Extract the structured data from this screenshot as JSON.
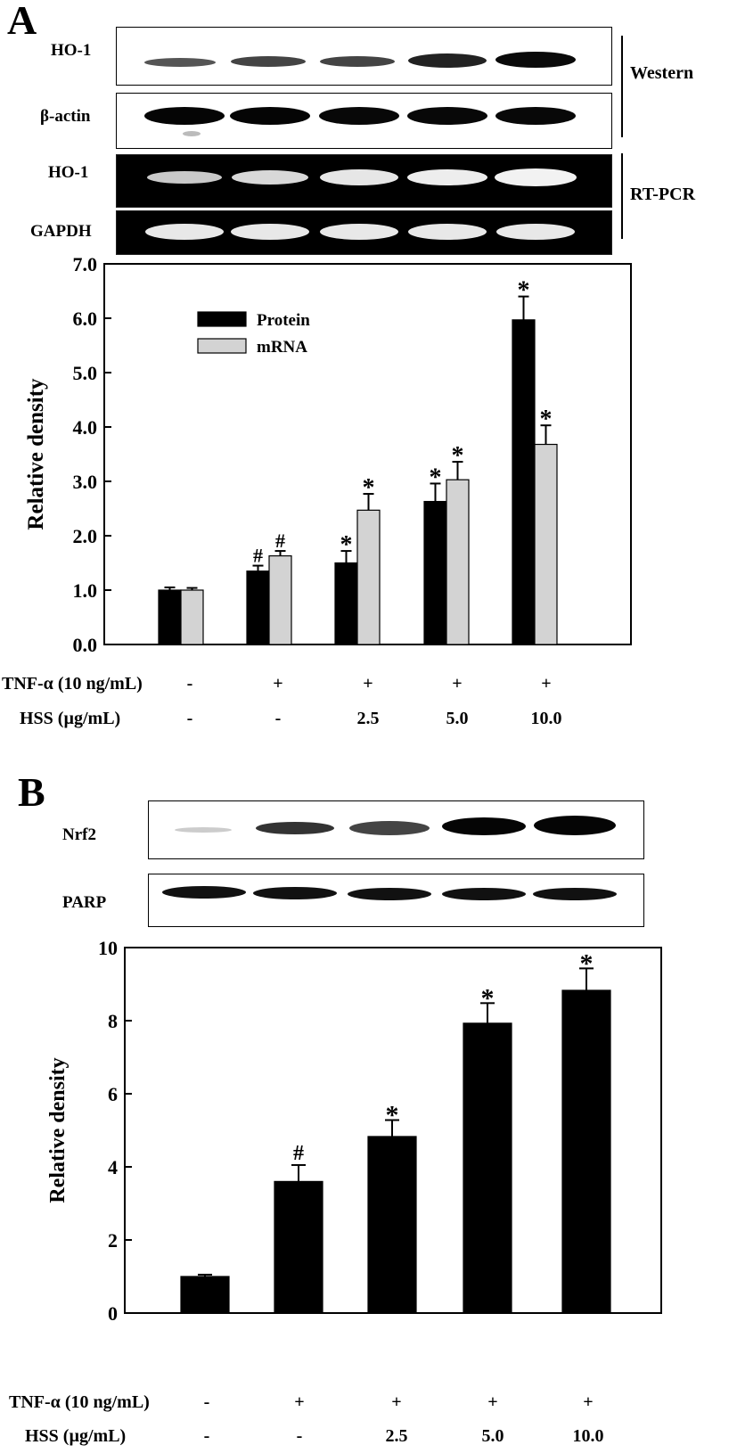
{
  "panel_a": {
    "letter": "A",
    "blots": {
      "rows": [
        "HO-1",
        "β-actin",
        "HO-1",
        "GAPDH"
      ],
      "methods": [
        "Western",
        "RT-PCR"
      ]
    },
    "conditions": [
      {
        "label": "TNF-α (10 ng/mL)",
        "values": [
          "-",
          "+",
          "+",
          "+",
          "+"
        ]
      },
      {
        "label": "HSS (µg/mL)",
        "values": [
          "-",
          "-",
          "2.5",
          "5.0",
          "10.0"
        ]
      }
    ]
  },
  "panel_b": {
    "letter": "B",
    "blots": {
      "rows": [
        "Nrf2",
        "PARP"
      ]
    },
    "conditions": [
      {
        "label": "TNF-α (10 ng/mL)",
        "values": [
          "-",
          "+",
          "+",
          "+",
          "+"
        ]
      },
      {
        "label": "HSS (µg/mL)",
        "values": [
          "-",
          "-",
          "2.5",
          "5.0",
          "10.0"
        ]
      }
    ]
  },
  "chart_data": [
    {
      "type": "bar",
      "ylabel": "Relative density",
      "ylim": [
        0,
        7
      ],
      "yticks": [
        "0.0",
        "1.0",
        "2.0",
        "3.0",
        "4.0",
        "5.0",
        "6.0",
        "7.0"
      ],
      "legend_position": "top-left",
      "series": [
        {
          "name": "Protein",
          "color": "#000000",
          "values": [
            1.0,
            1.35,
            1.5,
            2.63,
            5.97
          ],
          "errors": [
            0.05,
            0.1,
            0.22,
            0.33,
            0.43
          ],
          "marks": [
            "",
            "#",
            "*",
            "*",
            "*"
          ]
        },
        {
          "name": "mRNA",
          "color": "#d3d3d3",
          "values": [
            1.0,
            1.63,
            2.47,
            3.03,
            3.68
          ],
          "errors": [
            0.04,
            0.09,
            0.3,
            0.33,
            0.35
          ],
          "marks": [
            "",
            "#",
            "*",
            "*",
            "*"
          ]
        }
      ]
    },
    {
      "type": "bar",
      "ylabel": "Relative density",
      "ylim": [
        0,
        10
      ],
      "yticks": [
        "0",
        "2",
        "4",
        "6",
        "8",
        "10"
      ],
      "series": [
        {
          "color": "#000000",
          "values": [
            1.0,
            3.6,
            4.83,
            7.93,
            8.83
          ],
          "errors": [
            0.05,
            0.45,
            0.45,
            0.55,
            0.6
          ],
          "marks": [
            "",
            "#",
            "*",
            "*",
            "*"
          ]
        }
      ]
    }
  ]
}
